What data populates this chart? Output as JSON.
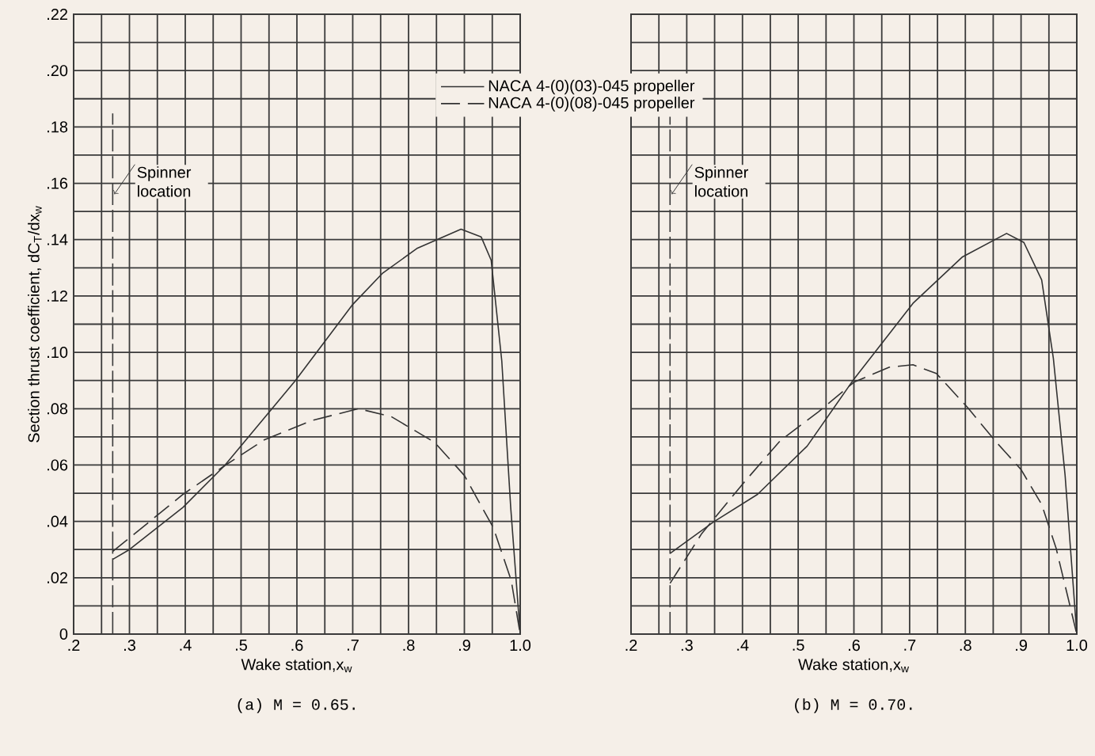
{
  "chart_data": [
    {
      "type": "line",
      "title": "(a)  M = 0.65.",
      "xlabel": "Wake station,x$_{w}$",
      "ylabel": "Section thrust coefficient, dC$_{T}$/dx$_{w}$",
      "xlim": [
        0.2,
        1.0
      ],
      "ylim": [
        0,
        0.22
      ],
      "xticks": [
        {
          "value": 0.2,
          "label": ".2"
        },
        {
          "value": 0.3,
          "label": ".3"
        },
        {
          "value": 0.4,
          "label": ".4"
        },
        {
          "value": 0.5,
          "label": ".5"
        },
        {
          "value": 0.6,
          "label": ".6"
        },
        {
          "value": 0.7,
          "label": ".7"
        },
        {
          "value": 0.8,
          "label": ".8"
        },
        {
          "value": 0.9,
          "label": ".9"
        },
        {
          "value": 1.0,
          "label": "1.0"
        }
      ],
      "yticks": [
        0,
        {
          "value": 0.02,
          "label": ".02"
        },
        {
          "value": 0.04,
          "label": ".04"
        },
        {
          "value": 0.06,
          "label": ".06"
        },
        {
          "value": 0.08,
          "label": ".08"
        },
        {
          "value": 0.1,
          "label": ".10"
        },
        {
          "value": 0.12,
          "label": ".12"
        },
        {
          "value": 0.14,
          "label": ".14"
        },
        {
          "value": 0.16,
          "label": ".16"
        },
        {
          "value": 0.18,
          "label": ".18"
        },
        {
          "value": 0.2,
          "label": ".20"
        },
        {
          "value": 0.22,
          "label": ".22"
        }
      ],
      "grid": true,
      "legend": "top right",
      "ref_lines": [
        {
          "axis": "x",
          "value": 0.27,
          "label": "Spinner location",
          "line_style": "dashed"
        }
      ],
      "series": [
        {
          "name": "NACA 4-(0)(03)-045 propeller",
          "color": "#333333",
          "line_style": "solid",
          "x": [
            0.27,
            0.3,
            0.396,
            0.47,
            0.597,
            0.7,
            0.753,
            0.816,
            0.894,
            0.93,
            0.948,
            0.967,
            0.983,
            1.0
          ],
          "values": [
            0.0265,
            0.03,
            0.045,
            0.0597,
            0.0899,
            0.117,
            0.128,
            0.137,
            0.1437,
            0.141,
            0.1327,
            0.097,
            0.045,
            0
          ]
        },
        {
          "name": "NACA 4-(0)(08)-045 propeller",
          "color": "#333333",
          "line_style": "dashed",
          "x": [
            0.27,
            0.396,
            0.47,
            0.542,
            0.627,
            0.71,
            0.769,
            0.847,
            0.9,
            0.952,
            0.984,
            1.0
          ],
          "values": [
            0.0293,
            0.0496,
            0.0597,
            0.069,
            0.0758,
            0.08,
            0.0772,
            0.068,
            0.0563,
            0.0377,
            0.019,
            0
          ]
        }
      ]
    },
    {
      "type": "line",
      "title": "(b)  M = 0.70.",
      "xlabel": "Wake station,x$_{w}$",
      "xlim": [
        0.2,
        1.0
      ],
      "ylim": [
        0,
        0.22
      ],
      "xticks": [
        {
          "value": 0.2,
          "label": ".2"
        },
        {
          "value": 0.3,
          "label": ".3"
        },
        {
          "value": 0.4,
          "label": ".4"
        },
        {
          "value": 0.5,
          "label": ".5"
        },
        {
          "value": 0.6,
          "label": ".6"
        },
        {
          "value": 0.7,
          "label": ".7"
        },
        {
          "value": 0.8,
          "label": ".8"
        },
        {
          "value": 0.9,
          "label": ".9"
        },
        {
          "value": 1.0,
          "label": "1.0"
        }
      ],
      "yticks": [
        {
          "value": 0,
          "label": null
        },
        {
          "value": 0.02,
          "label": null
        },
        {
          "value": 0.04,
          "label": null
        },
        {
          "value": 0.06,
          "label": null
        },
        {
          "value": 0.08,
          "label": null
        },
        {
          "value": 0.1,
          "label": null
        },
        {
          "value": 0.12,
          "label": null
        },
        {
          "value": 0.14,
          "label": null
        },
        {
          "value": 0.16,
          "label": null
        },
        {
          "value": 0.18,
          "label": null
        },
        {
          "value": 0.2,
          "label": null
        },
        {
          "value": 0.22,
          "label": null
        }
      ],
      "tick_labels": "x",
      "grid": true,
      "ref_lines": [
        {
          "axis": "x",
          "value": 0.27,
          "label": "Spinner location",
          "line_style": "dashed"
        }
      ],
      "series": [
        {
          "color": "#333333",
          "line_style": "solid",
          "x": [
            0.27,
            0.348,
            0.427,
            0.516,
            0.6,
            0.706,
            0.795,
            0.874,
            0.905,
            0.937,
            0.958,
            0.979,
            1.0
          ],
          "values": [
            0.0286,
            0.0398,
            0.0496,
            0.0667,
            0.0905,
            0.1174,
            0.1339,
            0.1422,
            0.139,
            0.1257,
            0.0978,
            0.0564,
            0
          ]
        },
        {
          "color": "#333333",
          "line_style": "dashed",
          "x": [
            0.27,
            0.327,
            0.4,
            0.468,
            0.537,
            0.6,
            0.663,
            0.706,
            0.748,
            0.805,
            0.853,
            0.9,
            0.937,
            0.963,
            1.0
          ],
          "values": [
            0.018,
            0.0357,
            0.0532,
            0.0687,
            0.079,
            0.0894,
            0.0947,
            0.0956,
            0.0925,
            0.0802,
            0.0687,
            0.0584,
            0.046,
            0.0304,
            0
          ]
        }
      ]
    }
  ]
}
